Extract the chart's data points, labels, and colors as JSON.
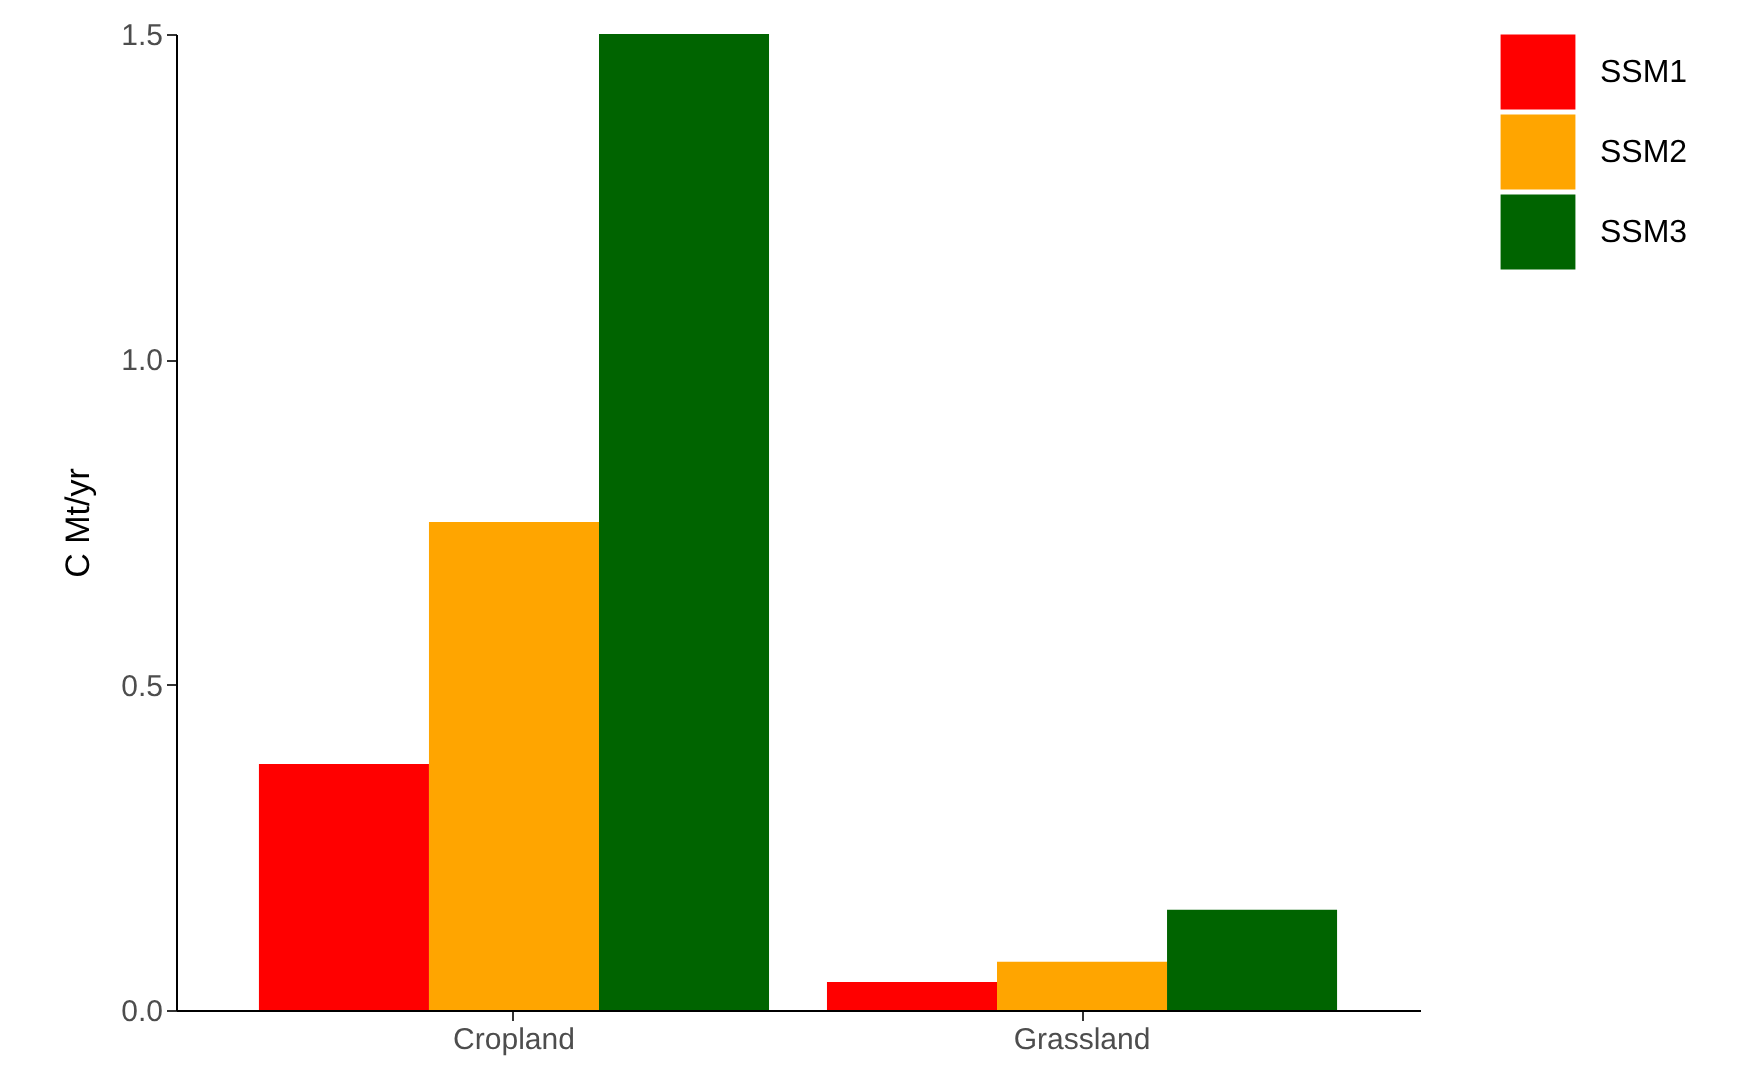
{
  "chart_data": {
    "type": "bar",
    "ylabel": "C Mt/yr",
    "categories": [
      "Cropland",
      "Grassland"
    ],
    "series": [
      {
        "name": "SSM1",
        "color": "#ff0000",
        "values": [
          0.378,
          0.043
        ]
      },
      {
        "name": "SSM2",
        "color": "#ffa500",
        "values": [
          0.75,
          0.074
        ]
      },
      {
        "name": "SSM3",
        "color": "#006400",
        "values": [
          1.5,
          0.154
        ]
      }
    ],
    "ylim": [
      0,
      1.5
    ],
    "yticks": [
      {
        "value": 0,
        "label": "0.0"
      },
      {
        "value": 0.5,
        "label": "0.5"
      },
      {
        "value": 1,
        "label": "1.0"
      },
      {
        "value": 1.5,
        "label": "1.5"
      }
    ],
    "grid": false,
    "legend": "right"
  }
}
